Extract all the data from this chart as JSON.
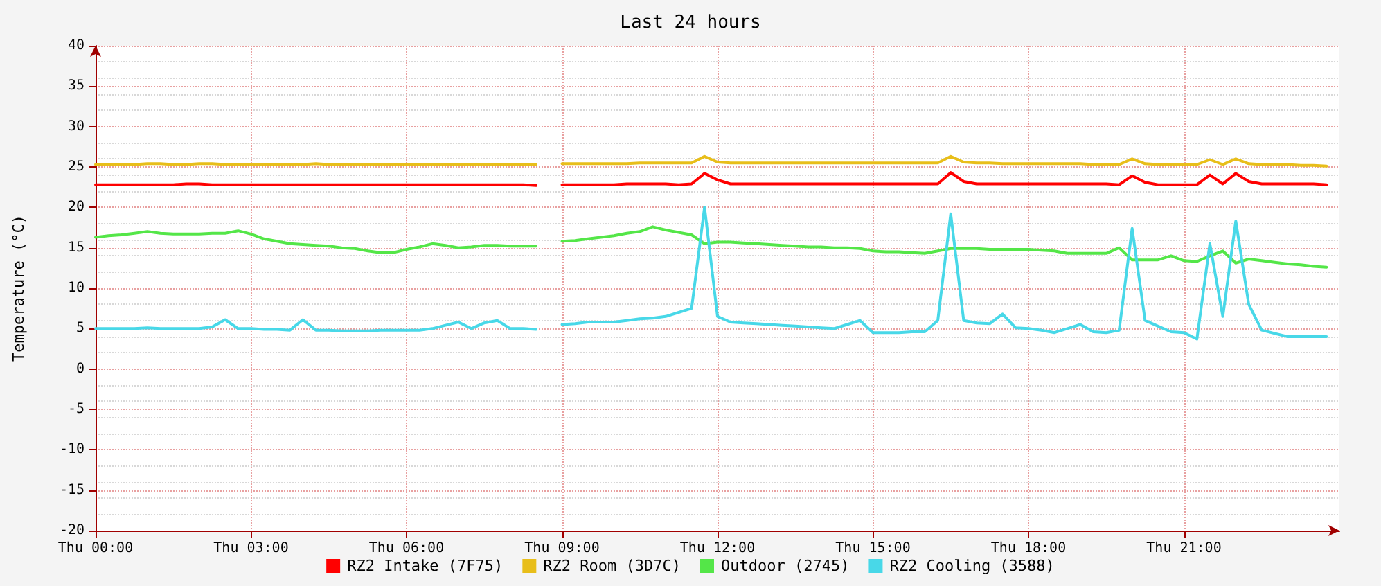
{
  "chart_data": {
    "type": "line",
    "title": "Last 24 hours",
    "ylabel": "Temperature (°C)",
    "categories": [
      "Thu 00:00",
      null,
      null,
      null,
      null,
      null,
      null,
      null,
      null,
      null,
      null,
      null,
      "Thu 03:00",
      null,
      null,
      null,
      null,
      null,
      null,
      null,
      null,
      null,
      null,
      null,
      "Thu 06:00",
      null,
      null,
      null,
      null,
      null,
      null,
      null,
      null,
      null,
      null,
      null,
      "Thu 09:00",
      null,
      null,
      null,
      null,
      null,
      null,
      null,
      null,
      null,
      null,
      null,
      "Thu 12:00",
      null,
      null,
      null,
      null,
      null,
      null,
      null,
      null,
      null,
      null,
      null,
      "Thu 15:00",
      null,
      null,
      null,
      null,
      null,
      null,
      null,
      null,
      null,
      null,
      null,
      "Thu 18:00",
      null,
      null,
      null,
      null,
      null,
      null,
      null,
      null,
      null,
      null,
      null,
      "Thu 21:00",
      null,
      null,
      null,
      null,
      null,
      null,
      null,
      null,
      null,
      null,
      null,
      null
    ],
    "ylim": [
      -20,
      40
    ],
    "yticks": [
      -20,
      -15,
      -10,
      -5,
      0,
      5,
      10,
      15,
      20,
      25,
      30,
      35,
      40
    ],
    "grid": true,
    "legend": "bottom",
    "marker": "none",
    "line_style": "solid",
    "series": [
      {
        "name": "RZ2 Intake (7F75)",
        "color": "#ff0000",
        "values": [
          22.8,
          22.8,
          22.8,
          22.8,
          22.8,
          22.8,
          22.8,
          22.9,
          22.9,
          22.8,
          22.8,
          22.8,
          22.8,
          22.8,
          22.8,
          22.8,
          22.8,
          22.8,
          22.8,
          22.8,
          22.8,
          22.8,
          22.8,
          22.8,
          22.8,
          22.8,
          22.8,
          22.8,
          22.8,
          22.8,
          22.8,
          22.8,
          22.8,
          22.8,
          22.7,
          null,
          22.8,
          22.8,
          22.8,
          22.8,
          22.8,
          22.9,
          22.9,
          22.9,
          22.9,
          22.8,
          22.9,
          24.2,
          23.4,
          22.9,
          22.9,
          22.9,
          22.9,
          22.9,
          22.9,
          22.9,
          22.9,
          22.9,
          22.9,
          22.9,
          22.9,
          22.9,
          22.9,
          22.9,
          22.9,
          22.9,
          24.3,
          23.2,
          22.9,
          22.9,
          22.9,
          22.9,
          22.9,
          22.9,
          22.9,
          22.9,
          22.9,
          22.9,
          22.9,
          22.8,
          23.9,
          23.1,
          22.8,
          22.8,
          22.8,
          22.8,
          24.0,
          22.9,
          24.2,
          23.2,
          22.9,
          22.9,
          22.9,
          22.9,
          22.9,
          22.8,
          null
        ]
      },
      {
        "name": "RZ2 Room (3D7C)",
        "color": "#e8be1a",
        "values": [
          25.3,
          25.3,
          25.3,
          25.3,
          25.4,
          25.4,
          25.3,
          25.3,
          25.4,
          25.4,
          25.3,
          25.3,
          25.3,
          25.3,
          25.3,
          25.3,
          25.3,
          25.4,
          25.3,
          25.3,
          25.3,
          25.3,
          25.3,
          25.3,
          25.3,
          25.3,
          25.3,
          25.3,
          25.3,
          25.3,
          25.3,
          25.3,
          25.3,
          25.3,
          25.3,
          null,
          25.4,
          25.4,
          25.4,
          25.4,
          25.4,
          25.4,
          25.5,
          25.5,
          25.5,
          25.5,
          25.5,
          26.3,
          25.6,
          25.5,
          25.5,
          25.5,
          25.5,
          25.5,
          25.5,
          25.5,
          25.5,
          25.5,
          25.5,
          25.5,
          25.5,
          25.5,
          25.5,
          25.5,
          25.5,
          25.5,
          26.3,
          25.6,
          25.5,
          25.5,
          25.4,
          25.4,
          25.4,
          25.4,
          25.4,
          25.4,
          25.4,
          25.3,
          25.3,
          25.3,
          26.0,
          25.4,
          25.3,
          25.3,
          25.3,
          25.3,
          25.9,
          25.3,
          26.0,
          25.4,
          25.3,
          25.3,
          25.3,
          25.2,
          25.2,
          25.1,
          null
        ]
      },
      {
        "name": "Outdoor (2745)",
        "color": "#54e648",
        "values": [
          16.3,
          16.5,
          16.6,
          16.8,
          17.0,
          16.8,
          16.7,
          16.7,
          16.7,
          16.8,
          16.8,
          17.1,
          16.7,
          16.1,
          15.8,
          15.5,
          15.4,
          15.3,
          15.2,
          15.0,
          14.9,
          14.6,
          14.4,
          14.4,
          14.8,
          15.1,
          15.5,
          15.3,
          15.0,
          15.1,
          15.3,
          15.3,
          15.2,
          15.2,
          15.2,
          null,
          15.8,
          15.9,
          16.1,
          16.3,
          16.5,
          16.8,
          17.0,
          17.6,
          17.2,
          16.9,
          16.6,
          15.5,
          15.7,
          15.7,
          15.6,
          15.5,
          15.4,
          15.3,
          15.2,
          15.1,
          15.1,
          15.0,
          15.0,
          14.9,
          14.6,
          14.5,
          14.5,
          14.4,
          14.3,
          14.6,
          14.9,
          14.9,
          14.9,
          14.8,
          14.8,
          14.8,
          14.8,
          14.7,
          14.6,
          14.3,
          14.3,
          14.3,
          14.3,
          15.0,
          13.5,
          13.5,
          13.5,
          14.0,
          13.4,
          13.3,
          14.0,
          14.6,
          13.1,
          13.6,
          13.4,
          13.2,
          13.0,
          12.9,
          12.7,
          12.6,
          null
        ]
      },
      {
        "name": "RZ2 Cooling (3588)",
        "color": "#48d8e8",
        "values": [
          5,
          5,
          5,
          5,
          5.1,
          5,
          5,
          5,
          5,
          5.2,
          6.1,
          5,
          5,
          4.9,
          4.9,
          4.8,
          6.1,
          4.8,
          4.8,
          4.7,
          4.7,
          4.7,
          4.8,
          4.8,
          4.8,
          4.8,
          5,
          5.4,
          5.8,
          5,
          5.7,
          6,
          5,
          5,
          4.9,
          null,
          5.5,
          5.6,
          5.8,
          5.8,
          5.8,
          6,
          6.2,
          6.3,
          6.5,
          7,
          7.5,
          20,
          6.5,
          5.8,
          5.7,
          5.6,
          5.5,
          5.4,
          5.3,
          5.2,
          5.1,
          5,
          5.5,
          6,
          4.5,
          4.5,
          4.5,
          4.6,
          4.6,
          6,
          19.2,
          6,
          5.7,
          5.6,
          6.8,
          5.1,
          5,
          4.8,
          4.5,
          5,
          5.5,
          4.6,
          4.5,
          4.8,
          17.4,
          6,
          5.3,
          4.6,
          4.5,
          3.7,
          15.5,
          6.5,
          18.3,
          8,
          4.8,
          4.4,
          4,
          4,
          4,
          4,
          null
        ]
      }
    ]
  }
}
